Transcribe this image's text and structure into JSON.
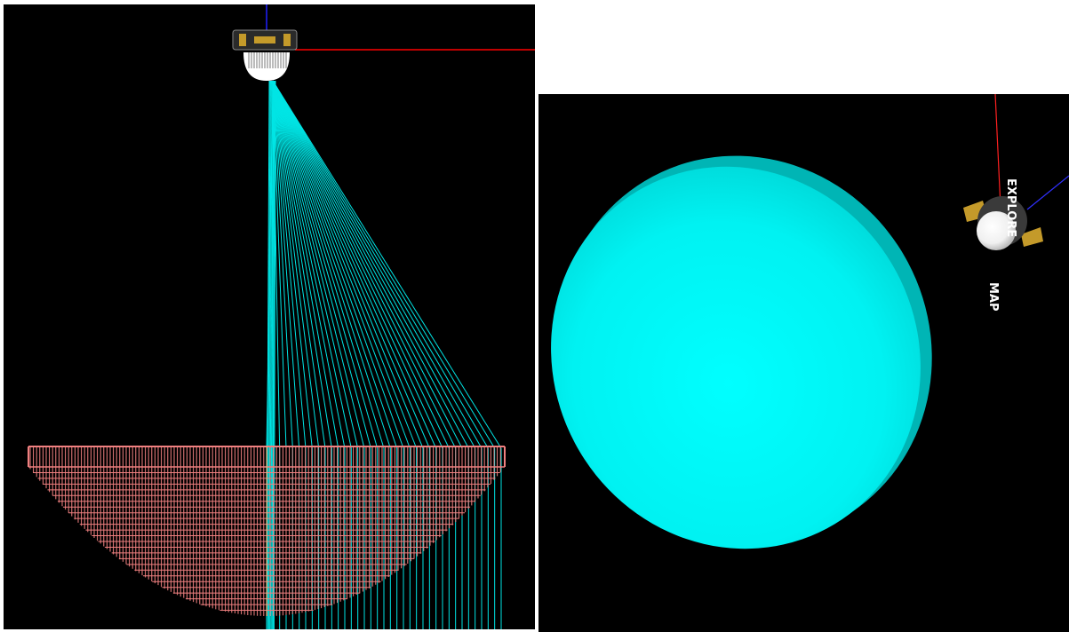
{
  "panels": {
    "left": {
      "view": "ray-trace-side-view",
      "ray_color": "#00e5e5",
      "mesh_color": "#f08080"
    },
    "right": {
      "view": "3d-rendered-view",
      "dish_color": "#00ffff"
    }
  },
  "spacecraft": {
    "label_upper": "EXPLORE",
    "label_lower": "MAP"
  },
  "colors": {
    "background": "#000000",
    "ray": "#00e5e5",
    "mesh": "#f08080",
    "axis_x": "#ff0000",
    "axis_z": "#2020ff",
    "dish": "#00ffff",
    "dish_rim": "#00b5b5",
    "solar_panel": "#c49a2a"
  }
}
